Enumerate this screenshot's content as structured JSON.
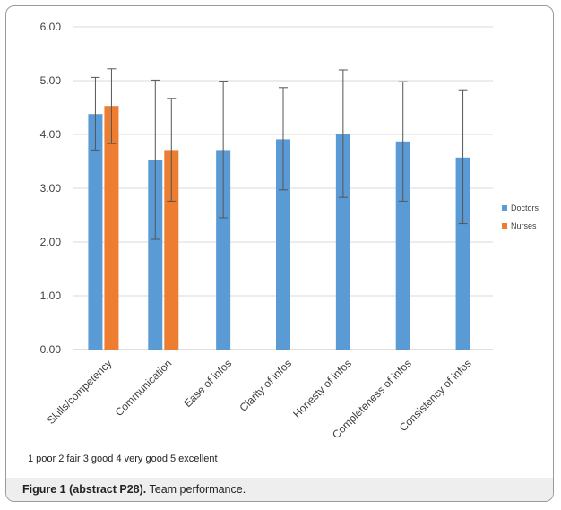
{
  "chart_data": {
    "type": "bar",
    "categories": [
      "Skills/competency",
      "Communication",
      "Ease of infos",
      "Clarity of infos",
      "Honesty of infos",
      "Completeness of infos",
      "Consistency of infos"
    ],
    "series": [
      {
        "name": "Doctors",
        "color": "#5b9bd5",
        "values": [
          4.38,
          3.53,
          3.71,
          3.91,
          4.01,
          3.87,
          3.57
        ],
        "error_upper": [
          5.06,
          5.01,
          4.99,
          4.87,
          5.2,
          4.98,
          4.83
        ],
        "error_lower": [
          3.71,
          2.05,
          2.45,
          2.97,
          2.83,
          2.76,
          2.34
        ]
      },
      {
        "name": "Nurses",
        "color": "#ed7d31",
        "values": [
          4.53,
          3.71,
          null,
          null,
          null,
          null,
          null
        ],
        "error_upper": [
          5.22,
          4.67,
          null,
          null,
          null,
          null,
          null
        ],
        "error_lower": [
          3.83,
          2.76,
          null,
          null,
          null,
          null,
          null
        ]
      }
    ],
    "ylim": [
      0,
      6
    ],
    "yticks": [
      "0.00",
      "1.00",
      "2.00",
      "3.00",
      "4.00",
      "5.00",
      "6.00"
    ],
    "grid": true,
    "legend_position": "right",
    "title": "",
    "xlabel": "",
    "ylabel": ""
  },
  "note": "1 poor 2 fair 3 good 4 very good 5 excellent",
  "caption": {
    "label": "Figure 1 (abstract P28).",
    "text": " Team performance."
  }
}
